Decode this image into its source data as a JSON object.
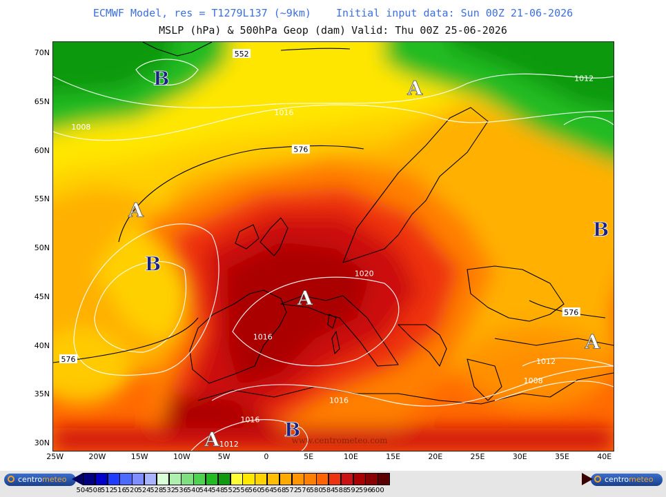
{
  "header": {
    "line1_left": "ECMWF Model, res = T1279L137 (~9km)",
    "line1_right": "Initial input data: Sun 00Z 21-06-2026",
    "line2_left": "MSLP (hPa) & 500hPa Geop (dam)",
    "line2_right": "Valid: Thu 00Z 25-06-2026"
  },
  "map": {
    "lat_labels": [
      "70N",
      "65N",
      "60N",
      "55N",
      "50N",
      "45N",
      "40N",
      "35N",
      "30N"
    ],
    "lon_labels": [
      "25W",
      "20W",
      "15W",
      "10W",
      "5W",
      "0",
      "5E",
      "10E",
      "15E",
      "20E",
      "25E",
      "30E",
      "35E",
      "40E"
    ],
    "watermark": "www.centrometeo.com",
    "pressure_centers": [
      {
        "type": "B",
        "lon": -12.5,
        "lat": 67.5
      },
      {
        "type": "A",
        "lon": 17.5,
        "lat": 66.5
      },
      {
        "type": "A",
        "lon": -15.5,
        "lat": 54.0
      },
      {
        "type": "B",
        "lon": -13.5,
        "lat": 48.5
      },
      {
        "type": "A",
        "lon": 4.5,
        "lat": 45.0
      },
      {
        "type": "B",
        "lon": 39.5,
        "lat": 52.0
      },
      {
        "type": "A",
        "lon": 38.5,
        "lat": 40.5
      },
      {
        "type": "A",
        "lon": -6.5,
        "lat": 30.5
      },
      {
        "type": "B",
        "lon": 3.0,
        "lat": 31.5
      }
    ],
    "contour_labels": [
      {
        "text": "552",
        "lon": -3.0,
        "lat": 70.0
      },
      {
        "text": "1016",
        "lon": 2.0,
        "lat": 64.0
      },
      {
        "text": "1008",
        "lon": -22.0,
        "lat": 62.5
      },
      {
        "text": "576",
        "lon": 4.0,
        "lat": 60.2
      },
      {
        "text": "1012",
        "lon": 37.5,
        "lat": 67.5
      },
      {
        "text": "1020",
        "lon": 11.5,
        "lat": 47.5
      },
      {
        "text": "576",
        "lon": 36.0,
        "lat": 43.5
      },
      {
        "text": "1016",
        "lon": -0.5,
        "lat": 41.0
      },
      {
        "text": "1012",
        "lon": 33.0,
        "lat": 38.5
      },
      {
        "text": "576",
        "lon": -23.5,
        "lat": 38.7
      },
      {
        "text": "1008",
        "lon": 31.5,
        "lat": 36.5
      },
      {
        "text": "1016",
        "lon": 8.5,
        "lat": 34.5
      },
      {
        "text": "1016",
        "lon": -2.0,
        "lat": 32.5
      },
      {
        "text": "1012",
        "lon": -4.5,
        "lat": 30.0
      }
    ]
  },
  "legend": {
    "logo_left": {
      "a": "centro",
      "b": "meteo"
    },
    "logo_right": {
      "a": "centro",
      "b": "meteo"
    },
    "values": [
      "504",
      "508",
      "512",
      "516",
      "520",
      "524",
      "528",
      "532",
      "536",
      "540",
      "544",
      "548",
      "552",
      "556",
      "560",
      "564",
      "568",
      "572",
      "576",
      "580",
      "584",
      "588",
      "592",
      "596",
      "600"
    ],
    "colors": [
      "#000080",
      "#0000cd",
      "#1e3cff",
      "#4b6bff",
      "#7f8fff",
      "#a9b4ff",
      "#d8ffd8",
      "#aef0ae",
      "#7fe07f",
      "#4fd24f",
      "#22bb22",
      "#119911",
      "#ffff33",
      "#ffe800",
      "#ffd400",
      "#ffbf00",
      "#ffaa00",
      "#ff9500",
      "#ff7f00",
      "#ff6400",
      "#ee3311",
      "#cc1111",
      "#aa0000",
      "#880000",
      "#5a0000"
    ],
    "arrow_left_color": "#000060",
    "arrow_right_color": "#3a0000"
  }
}
